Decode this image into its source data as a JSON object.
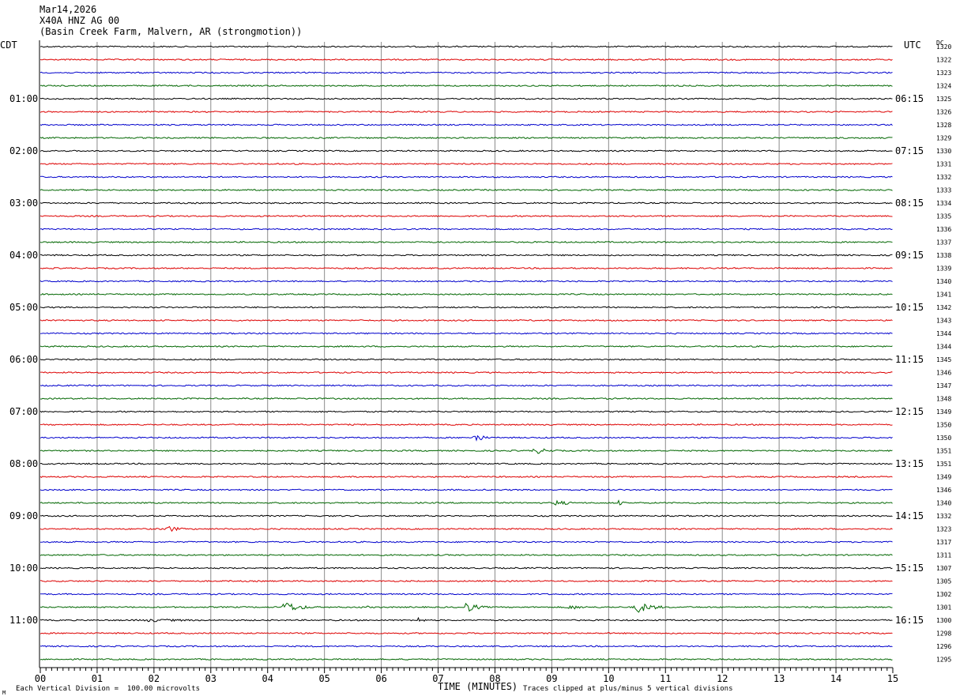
{
  "header": {
    "date": "Mar14,2026",
    "station": "X40A HNZ AG 00",
    "location": "(Basin Creek Farm, Malvern, AR (strongmotion))"
  },
  "footer": {
    "vertical_division": "Each Vertical Division =  100.00 microvolts",
    "xlabel": "TIME (MINUTES)",
    "clip_note": "Traces clipped at plus/minus 5 vertical divisions",
    "corner_mark": "M"
  },
  "chart_data": {
    "type": "line",
    "title": "X40A HNZ AG 00",
    "xlabel": "TIME (MINUTES)",
    "xlim": [
      0,
      15
    ],
    "x_ticks": [
      "00",
      "01",
      "02",
      "03",
      "04",
      "05",
      "06",
      "07",
      "08",
      "09",
      "10",
      "11",
      "12",
      "13",
      "14",
      "15"
    ],
    "left_axis_title": "CDT",
    "right_axis_title": "UTC",
    "dc_header": "DC",
    "left_labels": [
      "01:00",
      "02:00",
      "03:00",
      "04:00",
      "05:00",
      "06:00",
      "07:00",
      "08:00",
      "09:00",
      "10:00",
      "11:00"
    ],
    "right_labels": [
      "06:15",
      "07:15",
      "08:15",
      "09:15",
      "10:15",
      "11:15",
      "12:15",
      "13:15",
      "14:15",
      "15:15",
      "16:15"
    ],
    "label_every_n_traces": 4,
    "label_start_trace": 4,
    "trace_colors": [
      "#000000",
      "#dd0000",
      "#0000cc",
      "#006600"
    ],
    "dc_values": [
      "1320",
      "1322",
      "1323",
      "1324",
      "1325",
      "1326",
      "1328",
      "1329",
      "1330",
      "1331",
      "1332",
      "1333",
      "1334",
      "1335",
      "1336",
      "1337",
      "1338",
      "1339",
      "1340",
      "1341",
      "1342",
      "1343",
      "1344",
      "1344",
      "1345",
      "1346",
      "1347",
      "1348",
      "1349",
      "1350",
      "1350",
      "1351",
      "1351",
      "1349",
      "1346",
      "1340",
      "1332",
      "1323",
      "1317",
      "1311",
      "1307",
      "1305",
      "1302",
      "1301",
      "1300",
      "1298",
      "1296",
      "1295"
    ],
    "events": [
      {
        "trace": 30,
        "start_min": 7.6,
        "end_min": 7.95,
        "amplitude": 8
      },
      {
        "trace": 31,
        "start_min": 8.6,
        "end_min": 9.4,
        "amplitude": 4
      },
      {
        "trace": 35,
        "start_min": 9.0,
        "end_min": 9.6,
        "amplitude": 4
      },
      {
        "trace": 35,
        "start_min": 10.15,
        "end_min": 10.35,
        "amplitude": 4
      },
      {
        "trace": 37,
        "start_min": 2.15,
        "end_min": 2.7,
        "amplitude": 5
      },
      {
        "trace": 43,
        "start_min": 4.2,
        "end_min": 5.0,
        "amplitude": 7
      },
      {
        "trace": 43,
        "start_min": 5.6,
        "end_min": 6.2,
        "amplitude": 2
      },
      {
        "trace": 43,
        "start_min": 7.4,
        "end_min": 8.0,
        "amplitude": 7
      },
      {
        "trace": 43,
        "start_min": 9.2,
        "end_min": 10.0,
        "amplitude": 3
      },
      {
        "trace": 43,
        "start_min": 10.4,
        "end_min": 11.2,
        "amplitude": 7
      },
      {
        "trace": 44,
        "start_min": 1.5,
        "end_min": 4.4,
        "amplitude": 2
      },
      {
        "trace": 44,
        "start_min": 6.6,
        "end_min": 6.9,
        "amplitude": 4
      }
    ]
  }
}
